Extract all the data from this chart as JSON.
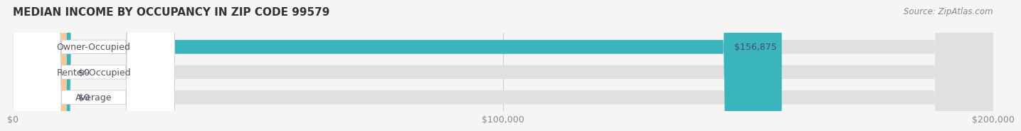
{
  "title": "MEDIAN INCOME BY OCCUPANCY IN ZIP CODE 99579",
  "source": "Source: ZipAtlas.com",
  "categories": [
    "Owner-Occupied",
    "Renter-Occupied",
    "Average"
  ],
  "values": [
    156875,
    0,
    0
  ],
  "bar_colors": [
    "#3ab5bc",
    "#c4a8d4",
    "#f5c99a"
  ],
  "bar_bg_color": "#e8e8e8",
  "label_bg_color": "#ffffff",
  "xlim": [
    0,
    200000
  ],
  "xticks": [
    0,
    100000,
    200000
  ],
  "xtick_labels": [
    "$0",
    "$100,000",
    "$200,000"
  ],
  "bar_height": 0.55,
  "title_fontsize": 11,
  "tick_fontsize": 9,
  "label_fontsize": 9,
  "value_fontsize": 9,
  "source_fontsize": 8.5,
  "fig_bg_color": "#f5f5f5",
  "title_color": "#333333",
  "tick_color": "#888888",
  "value_color": "#4a4a6a",
  "source_color": "#888888",
  "label_text_color": "#555555"
}
